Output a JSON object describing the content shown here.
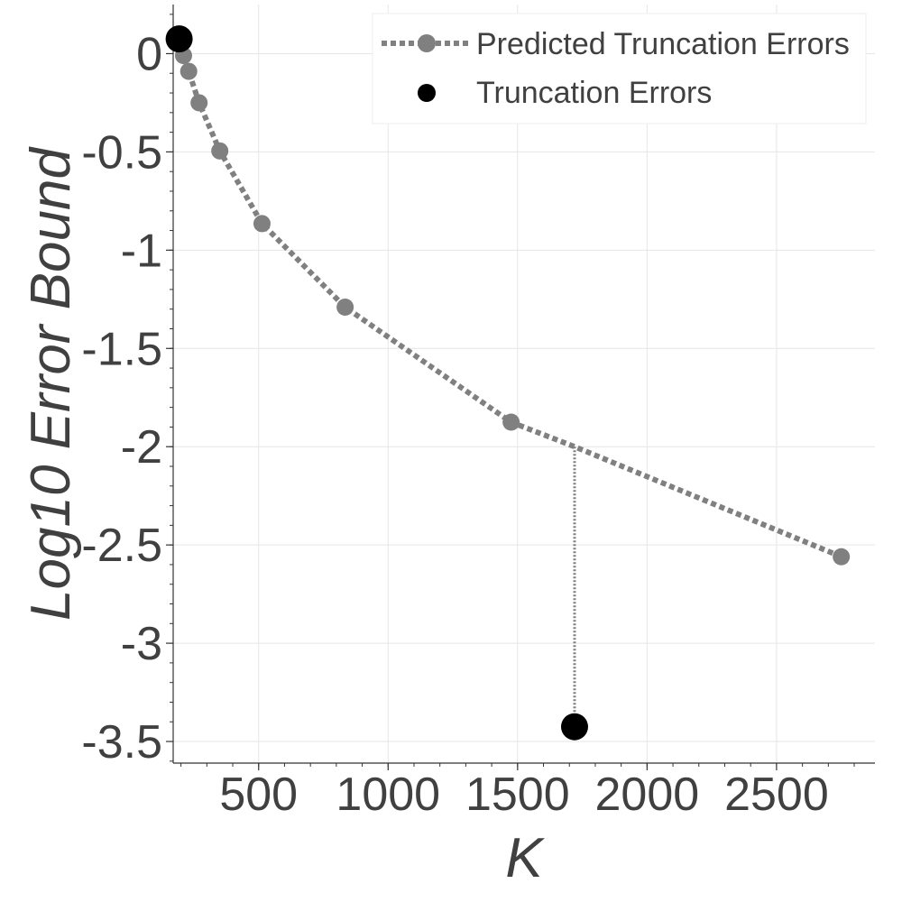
{
  "chart_data": {
    "type": "line",
    "title": "",
    "xlabel": "K",
    "ylabel": "Log10 Error Bound",
    "xlim": [
      170,
      2880
    ],
    "ylim": [
      -3.61,
      0.25
    ],
    "x_ticks": [
      {
        "value": 500,
        "label": "500"
      },
      {
        "value": 1000,
        "label": "1000"
      },
      {
        "value": 1500,
        "label": "1500"
      },
      {
        "value": 2000,
        "label": "2000"
      },
      {
        "value": 2500,
        "label": "2500"
      }
    ],
    "y_ticks": [
      {
        "value": 0,
        "label": "0"
      },
      {
        "value": -0.5,
        "label": "-0.5"
      },
      {
        "value": -1,
        "label": "-1"
      },
      {
        "value": -1.5,
        "label": "-1.5"
      },
      {
        "value": -2,
        "label": "-2"
      },
      {
        "value": -2.5,
        "label": "-2.5"
      },
      {
        "value": -3,
        "label": "-3"
      },
      {
        "value": -3.5,
        "label": "-3.5"
      }
    ],
    "grid": true,
    "legend_position": "top-right",
    "series": [
      {
        "name": "Predicted Truncation Errors",
        "kind": "line-with-markers",
        "color": "#808080",
        "line_style": "dotted",
        "x": [
          210,
          230,
          270,
          350,
          513,
          834,
          1475,
          1720,
          2750
        ],
        "y": [
          -0.01,
          -0.09,
          -0.25,
          -0.495,
          -0.865,
          -1.29,
          -1.875,
          -2.0,
          -2.56
        ],
        "marker_x": [
          210,
          230,
          270,
          350,
          513,
          834,
          1475,
          2750
        ],
        "marker_y": [
          -0.01,
          -0.09,
          -0.25,
          -0.495,
          -0.865,
          -1.29,
          -1.875,
          -2.56
        ]
      },
      {
        "name": "Truncation Errors",
        "kind": "scatter",
        "color": "#000000",
        "x": [
          193,
          1720
        ],
        "y": [
          0.075,
          -3.425
        ]
      }
    ],
    "annotations": [
      {
        "type": "vertical-dotted-connector",
        "x": 1720,
        "y_from": -2.0,
        "y_to": -3.425,
        "color": "#808080"
      }
    ]
  }
}
